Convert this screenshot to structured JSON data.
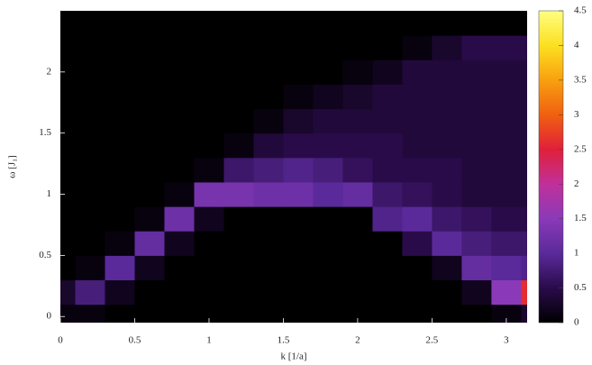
{
  "chart_data": {
    "type": "heatmap",
    "xlabel": "k [1/a]",
    "ylabel": "ω [J₁]",
    "xlim": [
      0,
      3.14
    ],
    "ylim": [
      -0.05,
      2.5
    ],
    "xticks": [
      0,
      0.5,
      1,
      1.5,
      2,
      2.5,
      3
    ],
    "yticks": [
      0,
      0.5,
      1,
      1.5,
      2
    ],
    "xbins": [
      -0.1,
      0.1,
      0.3,
      0.5,
      0.7,
      0.9,
      1.1,
      1.3,
      1.5,
      1.7,
      1.9,
      2.1,
      2.3,
      2.5,
      2.7,
      2.9,
      3.1,
      3.3
    ],
    "ybins": [
      -0.1,
      0.1,
      0.3,
      0.5,
      0.7,
      0.9,
      1.1,
      1.3,
      1.5,
      1.7,
      1.9,
      2.1,
      2.3,
      2.5
    ],
    "z": [
      [
        0.1,
        0.1,
        0,
        0,
        0,
        0,
        0,
        0,
        0,
        0,
        0,
        0,
        0,
        0,
        0,
        0.1,
        0.3
      ],
      [
        0.3,
        0.8,
        0.2,
        0,
        0,
        0,
        0,
        0,
        0,
        0,
        0,
        0,
        0,
        0,
        0.2,
        1.5,
        2.6
      ],
      [
        0,
        0.1,
        1.0,
        0.2,
        0,
        0,
        0,
        0,
        0,
        0,
        0,
        0,
        0,
        0.2,
        1.1,
        1.0,
        0.9
      ],
      [
        0,
        0,
        0.1,
        1.1,
        0.2,
        0,
        0,
        0,
        0,
        0,
        0,
        0,
        0.5,
        1.0,
        0.8,
        0.7,
        0.7
      ],
      [
        0,
        0,
        0,
        0.1,
        1.2,
        0.2,
        0,
        0,
        0,
        0,
        0,
        0.9,
        1.0,
        0.7,
        0.6,
        0.5,
        0.5
      ],
      [
        0,
        0,
        0,
        0,
        0.1,
        1.3,
        1.3,
        1.2,
        1.2,
        1.0,
        1.1,
        0.7,
        0.6,
        0.5,
        0.4,
        0.4,
        0.4
      ],
      [
        0,
        0,
        0,
        0,
        0,
        0.1,
        0.7,
        0.8,
        0.9,
        0.8,
        0.6,
        0.5,
        0.5,
        0.5,
        0.4,
        0.4,
        0.4
      ],
      [
        0,
        0,
        0,
        0,
        0,
        0,
        0.1,
        0.4,
        0.5,
        0.5,
        0.5,
        0.5,
        0.4,
        0.4,
        0.4,
        0.4,
        0.4
      ],
      [
        0,
        0,
        0,
        0,
        0,
        0,
        0,
        0.1,
        0.3,
        0.4,
        0.4,
        0.4,
        0.4,
        0.4,
        0.4,
        0.4,
        0.4
      ],
      [
        0,
        0,
        0,
        0,
        0,
        0,
        0,
        0,
        0.1,
        0.2,
        0.3,
        0.4,
        0.4,
        0.4,
        0.4,
        0.4,
        0.4
      ],
      [
        0,
        0,
        0,
        0,
        0,
        0,
        0,
        0,
        0,
        0,
        0.1,
        0.2,
        0.4,
        0.4,
        0.4,
        0.4,
        0.4
      ],
      [
        0,
        0,
        0,
        0,
        0,
        0,
        0,
        0,
        0,
        0,
        0,
        0,
        0.1,
        0.3,
        0.5,
        0.5,
        0.5
      ],
      [
        0,
        0,
        0,
        0,
        0,
        0,
        0,
        0,
        0,
        0,
        0,
        0,
        0,
        0,
        0,
        0,
        0
      ]
    ],
    "zlim": [
      0,
      4.5
    ],
    "zticks": [
      0,
      0.5,
      1,
      1.5,
      2,
      2.5,
      3,
      3.5,
      4,
      4.5
    ],
    "colormap": [
      "#000000",
      "#2a0b4a",
      "#5a2a9a",
      "#8a3ab8",
      "#c0309a",
      "#e0203a",
      "#f06010",
      "#f8a010",
      "#fce020",
      "#ffff80"
    ]
  }
}
